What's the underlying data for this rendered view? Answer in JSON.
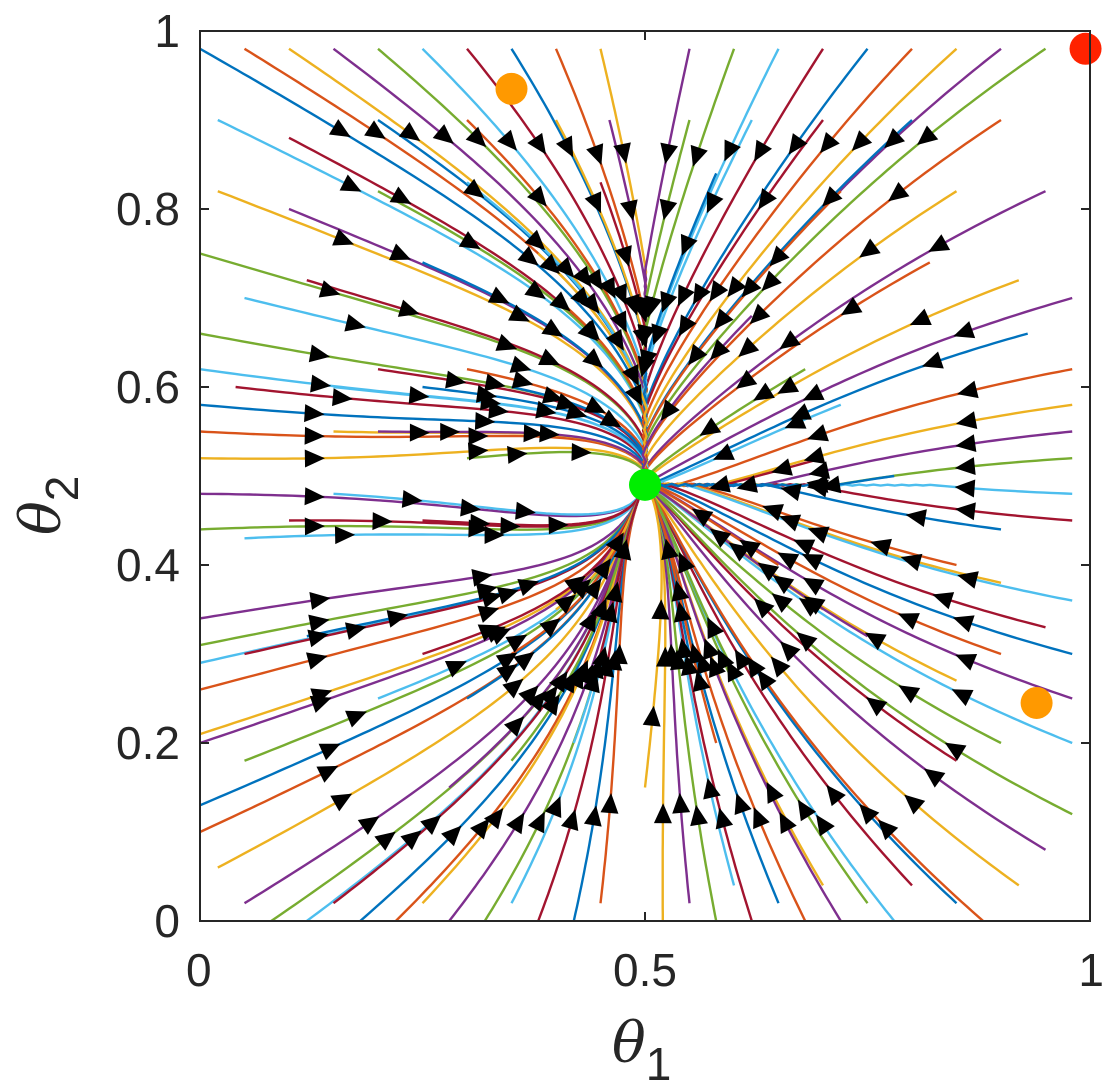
{
  "chart_data": {
    "type": "streamline",
    "xlim": [
      0,
      1
    ],
    "ylim": [
      0,
      1
    ],
    "xticks": [
      {
        "value": 0,
        "label": "0"
      },
      {
        "value": 0.5,
        "label": "0.5"
      },
      {
        "value": 1,
        "label": "1"
      }
    ],
    "yticks": [
      {
        "value": 0,
        "label": "0"
      },
      {
        "value": 0.2,
        "label": "0.2"
      },
      {
        "value": 0.4,
        "label": "0.4"
      },
      {
        "value": 0.6,
        "label": "0.6"
      },
      {
        "value": 0.8,
        "label": "0.8"
      },
      {
        "value": 1,
        "label": "1"
      }
    ],
    "xlabel": {
      "symbol": "θ",
      "subscript": "1"
    },
    "ylabel": {
      "symbol": "θ",
      "subscript": "2"
    },
    "grid": false,
    "legend": "none",
    "sink": {
      "x": 0.5,
      "y": 0.49
    },
    "fixed_points": [
      {
        "x": 0.5,
        "y": 0.49,
        "color": "#00ee00"
      },
      {
        "x": 0.35,
        "y": 0.935,
        "color": "#ff9900"
      },
      {
        "x": 0.94,
        "y": 0.245,
        "color": "#ff9900"
      },
      {
        "x": 0.995,
        "y": 0.98,
        "color": "#ff2200"
      }
    ],
    "line_colors": [
      "#0072bd",
      "#d95319",
      "#edb120",
      "#7e2f8e",
      "#77ac30",
      "#4dbeee",
      "#a2142f"
    ],
    "streamline_starts": [
      [
        0.0,
        0.98
      ],
      [
        0.05,
        0.98
      ],
      [
        0.1,
        0.98
      ],
      [
        0.15,
        0.98
      ],
      [
        0.2,
        0.98
      ],
      [
        0.25,
        0.98
      ],
      [
        0.3,
        0.98
      ],
      [
        0.35,
        0.98
      ],
      [
        0.4,
        0.98
      ],
      [
        0.45,
        0.98
      ],
      [
        0.55,
        0.98
      ],
      [
        0.6,
        0.98
      ],
      [
        0.65,
        0.98
      ],
      [
        0.7,
        0.98
      ],
      [
        0.75,
        0.98
      ],
      [
        0.8,
        0.98
      ],
      [
        0.85,
        0.98
      ],
      [
        0.9,
        0.98
      ],
      [
        0.95,
        0.98
      ],
      [
        0.02,
        0.9
      ],
      [
        0.1,
        0.88
      ],
      [
        0.2,
        0.9
      ],
      [
        0.3,
        0.9
      ],
      [
        0.4,
        0.9
      ],
      [
        0.46,
        0.9
      ],
      [
        0.55,
        0.9
      ],
      [
        0.62,
        0.9
      ],
      [
        0.7,
        0.9
      ],
      [
        0.8,
        0.9
      ],
      [
        0.9,
        0.9
      ],
      [
        0.02,
        0.82
      ],
      [
        0.1,
        0.8
      ],
      [
        0.2,
        0.82
      ],
      [
        0.3,
        0.83
      ],
      [
        0.45,
        0.83
      ],
      [
        0.58,
        0.84
      ],
      [
        0.72,
        0.82
      ],
      [
        0.85,
        0.82
      ],
      [
        0.95,
        0.82
      ],
      [
        0.0,
        0.75
      ],
      [
        0.05,
        0.7
      ],
      [
        0.12,
        0.72
      ],
      [
        0.25,
        0.74
      ],
      [
        0.82,
        0.74
      ],
      [
        0.92,
        0.72
      ],
      [
        0.98,
        0.7
      ],
      [
        0.0,
        0.66
      ],
      [
        0.0,
        0.62
      ],
      [
        0.04,
        0.6
      ],
      [
        0.0,
        0.58
      ],
      [
        0.0,
        0.55
      ],
      [
        0.0,
        0.52
      ],
      [
        0.0,
        0.48
      ],
      [
        0.0,
        0.44
      ],
      [
        0.05,
        0.43
      ],
      [
        0.1,
        0.45
      ],
      [
        0.93,
        0.66
      ],
      [
        0.98,
        0.62
      ],
      [
        0.98,
        0.58
      ],
      [
        0.98,
        0.55
      ],
      [
        0.98,
        0.52
      ],
      [
        0.98,
        0.48
      ],
      [
        0.98,
        0.45
      ],
      [
        0.9,
        0.44
      ],
      [
        0.85,
        0.4
      ],
      [
        0.9,
        0.38
      ],
      [
        0.0,
        0.34
      ],
      [
        0.0,
        0.31
      ],
      [
        0.0,
        0.29
      ],
      [
        0.05,
        0.3
      ],
      [
        0.12,
        0.32
      ],
      [
        0.0,
        0.26
      ],
      [
        0.0,
        0.21
      ],
      [
        0.0,
        0.2
      ],
      [
        0.05,
        0.18
      ],
      [
        0.98,
        0.36
      ],
      [
        0.95,
        0.33
      ],
      [
        0.98,
        0.3
      ],
      [
        0.9,
        0.3
      ],
      [
        0.85,
        0.27
      ],
      [
        0.98,
        0.25
      ],
      [
        0.9,
        0.2
      ],
      [
        0.98,
        0.2
      ],
      [
        0.85,
        0.18
      ],
      [
        0.0,
        0.13
      ],
      [
        0.0,
        0.1
      ],
      [
        0.02,
        0.06
      ],
      [
        0.05,
        0.02
      ],
      [
        0.08,
        0.0
      ],
      [
        0.12,
        0.0
      ],
      [
        0.15,
        0.02
      ],
      [
        0.18,
        0.0
      ],
      [
        0.22,
        0.0
      ],
      [
        0.25,
        0.02
      ],
      [
        0.28,
        0.0
      ],
      [
        0.32,
        0.0
      ],
      [
        0.35,
        0.02
      ],
      [
        0.38,
        0.0
      ],
      [
        0.42,
        0.0
      ],
      [
        0.45,
        0.02
      ],
      [
        0.52,
        0.0
      ],
      [
        0.55,
        0.02
      ],
      [
        0.58,
        0.0
      ],
      [
        0.6,
        0.04
      ],
      [
        0.62,
        0.0
      ],
      [
        0.65,
        0.02
      ],
      [
        0.68,
        0.0
      ],
      [
        0.7,
        0.04
      ],
      [
        0.72,
        0.0
      ],
      [
        0.75,
        0.02
      ],
      [
        0.78,
        0.0
      ],
      [
        0.8,
        0.04
      ],
      [
        0.85,
        0.02
      ],
      [
        0.88,
        0.0
      ],
      [
        0.92,
        0.04
      ],
      [
        0.95,
        0.08
      ],
      [
        0.98,
        0.12
      ],
      [
        0.15,
        0.6
      ],
      [
        0.2,
        0.62
      ],
      [
        0.25,
        0.6
      ],
      [
        0.3,
        0.62
      ],
      [
        0.15,
        0.55
      ],
      [
        0.2,
        0.55
      ],
      [
        0.3,
        0.52
      ],
      [
        0.15,
        0.48
      ],
      [
        0.25,
        0.45
      ],
      [
        0.35,
        0.6
      ],
      [
        0.4,
        0.7
      ],
      [
        0.38,
        0.75
      ],
      [
        0.62,
        0.68
      ],
      [
        0.68,
        0.62
      ],
      [
        0.72,
        0.58
      ],
      [
        0.7,
        0.52
      ],
      [
        0.78,
        0.5
      ],
      [
        0.65,
        0.4
      ],
      [
        0.7,
        0.35
      ],
      [
        0.75,
        0.32
      ],
      [
        0.6,
        0.28
      ],
      [
        0.2,
        0.25
      ],
      [
        0.25,
        0.3
      ],
      [
        0.3,
        0.25
      ],
      [
        0.35,
        0.3
      ],
      [
        0.4,
        0.35
      ],
      [
        0.28,
        0.15
      ],
      [
        0.35,
        0.18
      ],
      [
        0.42,
        0.2
      ],
      [
        0.45,
        0.3
      ],
      [
        0.55,
        0.3
      ],
      [
        0.58,
        0.2
      ],
      [
        0.5,
        0.15
      ]
    ]
  }
}
